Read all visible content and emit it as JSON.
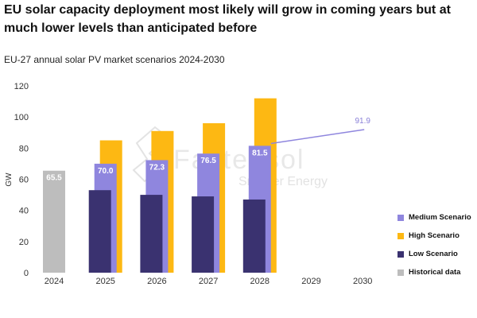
{
  "headline": "EU solar capacity deployment most likely will grow in coming years but at much lower levels than anticipated before",
  "watermark": {
    "brand": "Fastensol",
    "tagline": "Smarter Energy"
  },
  "chart_data": {
    "type": "bar",
    "title": "EU-27 annual solar PV market scenarios 2024-2030",
    "ylabel": "GW",
    "xlabel": "",
    "ylim": [
      0,
      120
    ],
    "yticks": [
      0,
      20,
      40,
      60,
      80,
      100,
      120
    ],
    "categories": [
      "2024",
      "2025",
      "2026",
      "2027",
      "2028",
      "2029",
      "2030"
    ],
    "series": [
      {
        "name": "Historical data",
        "color": "#bdbdbd",
        "values": [
          65.5,
          null,
          null,
          null,
          null,
          null,
          null
        ],
        "labels": [
          "65.5",
          null,
          null,
          null,
          null,
          null,
          null
        ]
      },
      {
        "name": "High Scenario",
        "color": "#fdb813",
        "values": [
          null,
          85,
          91,
          96,
          112,
          null,
          null
        ]
      },
      {
        "name": "Medium Scenario",
        "color": "#8f86de",
        "values": [
          null,
          70.0,
          72.3,
          76.5,
          81.5,
          null,
          null
        ],
        "labels": [
          null,
          "70.0",
          "72.3",
          "76.5",
          "81.5",
          null,
          null
        ]
      },
      {
        "name": "Low Scenario",
        "color": "#3a3270",
        "values": [
          null,
          53,
          50,
          49,
          47,
          null,
          null
        ]
      }
    ],
    "line": {
      "color": "#8f86de",
      "points": [
        [
          "2028",
          83
        ],
        [
          "2030",
          91.9
        ]
      ],
      "label": "91.9"
    },
    "legend_position": "bottom-right",
    "grid": false
  }
}
